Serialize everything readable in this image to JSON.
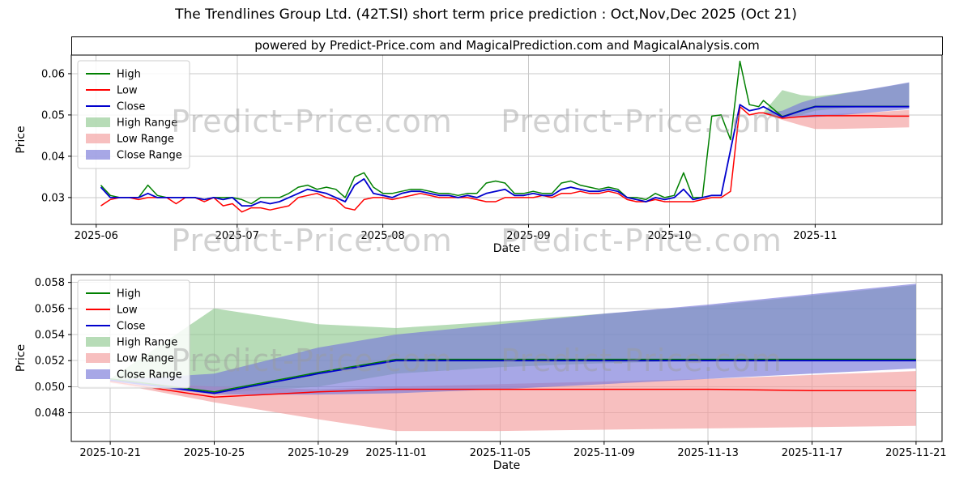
{
  "title": "The Trendlines Group Ltd. (42T.SI) short term price prediction : Oct,Nov,Dec 2025 (Oct 21)",
  "subtitle": "powered by Predict-Price.com and MagicalPrediction.com and MagicalAnalysis.com",
  "watermark_text": "Predict-Price.com",
  "colors": {
    "high": "#008000",
    "low": "#ff0000",
    "close": "#0000cd",
    "high_range": "#90c990",
    "low_range": "#f29c9c",
    "close_range": "#7878d8",
    "grid": "#c8c8c8",
    "frame": "#000000",
    "legend_border": "#cccccc"
  },
  "legend": {
    "items": [
      {
        "label": "High",
        "swatch": "line",
        "color": "high"
      },
      {
        "label": "Low",
        "swatch": "line",
        "color": "low"
      },
      {
        "label": "Close",
        "swatch": "line",
        "color": "close"
      },
      {
        "label": "High Range",
        "swatch": "patch",
        "color": "high_range"
      },
      {
        "label": "Low Range",
        "swatch": "patch",
        "color": "low_range"
      },
      {
        "label": "Close Range",
        "swatch": "patch",
        "color": "close_range"
      }
    ]
  },
  "chart_data": [
    {
      "type": "line",
      "name": "price-history",
      "xlabel": "Date",
      "ylabel": "Price",
      "x_unit": "days since 2025-06-01",
      "xlim": [
        -5.3,
        180
      ],
      "ylim": [
        0.0235,
        0.0645
      ],
      "grid": true,
      "legend_position": "upper-left",
      "x_ticks": [
        {
          "x": 0,
          "label": "2025-06"
        },
        {
          "x": 30,
          "label": "2025-07"
        },
        {
          "x": 61,
          "label": "2025-08"
        },
        {
          "x": 92,
          "label": "2025-09"
        },
        {
          "x": 122,
          "label": "2025-10"
        },
        {
          "x": 153,
          "label": "2025-11"
        }
      ],
      "y_ticks": [
        {
          "y": 0.03,
          "label": "0.03"
        },
        {
          "y": 0.04,
          "label": "0.04"
        },
        {
          "y": 0.05,
          "label": "0.05"
        },
        {
          "y": 0.06,
          "label": "0.06"
        }
      ],
      "series": [
        {
          "name": "High",
          "color": "high",
          "x": [
            1,
            3,
            5,
            7,
            9,
            11,
            13,
            15,
            17,
            19,
            21,
            23,
            25,
            27,
            29,
            31,
            33,
            35,
            37,
            39,
            41,
            43,
            45,
            47,
            49,
            51,
            53,
            55,
            57,
            59,
            61,
            63,
            65,
            67,
            69,
            71,
            73,
            75,
            77,
            79,
            81,
            83,
            85,
            87,
            89,
            91,
            93,
            95,
            97,
            99,
            101,
            103,
            105,
            107,
            109,
            111,
            113,
            115,
            117,
            119,
            121,
            123,
            125,
            127,
            129,
            131,
            133,
            135,
            137,
            139,
            141,
            142,
            146,
            150,
            153,
            157,
            161,
            165,
            169,
            173
          ],
          "values": [
            0.033,
            0.0305,
            0.03,
            0.03,
            0.03,
            0.033,
            0.0305,
            0.03,
            0.03,
            0.03,
            0.03,
            0.0295,
            0.03,
            0.03,
            0.03,
            0.0295,
            0.0285,
            0.03,
            0.03,
            0.03,
            0.031,
            0.0325,
            0.033,
            0.032,
            0.0325,
            0.032,
            0.03,
            0.035,
            0.036,
            0.0325,
            0.031,
            0.031,
            0.0315,
            0.032,
            0.032,
            0.0315,
            0.031,
            0.031,
            0.0305,
            0.031,
            0.031,
            0.0335,
            0.034,
            0.0335,
            0.031,
            0.031,
            0.0315,
            0.031,
            0.031,
            0.0335,
            0.034,
            0.033,
            0.0325,
            0.032,
            0.0325,
            0.032,
            0.03,
            0.03,
            0.0295,
            0.031,
            0.03,
            0.0305,
            0.036,
            0.03,
            0.03,
            0.0497,
            0.05,
            0.044,
            0.063,
            0.0525,
            0.052,
            0.0535,
            0.0496,
            0.0511,
            0.0521,
            0.0521,
            0.0521,
            0.0521,
            0.0521,
            0.0521
          ]
        },
        {
          "name": "Low",
          "color": "low",
          "x": [
            1,
            3,
            5,
            7,
            9,
            11,
            13,
            15,
            17,
            19,
            21,
            23,
            25,
            27,
            29,
            31,
            33,
            35,
            37,
            39,
            41,
            43,
            45,
            47,
            49,
            51,
            53,
            55,
            57,
            59,
            61,
            63,
            65,
            67,
            69,
            71,
            73,
            75,
            77,
            79,
            81,
            83,
            85,
            87,
            89,
            91,
            93,
            95,
            97,
            99,
            101,
            103,
            105,
            107,
            109,
            111,
            113,
            115,
            117,
            119,
            121,
            123,
            125,
            127,
            129,
            131,
            133,
            135,
            137,
            139,
            141,
            142,
            146,
            150,
            153,
            157,
            161,
            165,
            169,
            173
          ],
          "values": [
            0.028,
            0.0295,
            0.03,
            0.03,
            0.0295,
            0.03,
            0.03,
            0.03,
            0.0285,
            0.03,
            0.03,
            0.029,
            0.03,
            0.028,
            0.0285,
            0.0265,
            0.0275,
            0.0275,
            0.027,
            0.0275,
            0.028,
            0.03,
            0.0305,
            0.031,
            0.03,
            0.0295,
            0.0275,
            0.027,
            0.0295,
            0.03,
            0.03,
            0.0295,
            0.03,
            0.0305,
            0.031,
            0.0305,
            0.03,
            0.03,
            0.03,
            0.03,
            0.0295,
            0.029,
            0.029,
            0.03,
            0.03,
            0.03,
            0.03,
            0.0305,
            0.03,
            0.031,
            0.031,
            0.0315,
            0.031,
            0.031,
            0.0315,
            0.031,
            0.0295,
            0.029,
            0.029,
            0.0295,
            0.029,
            0.029,
            0.029,
            0.029,
            0.0295,
            0.03,
            0.03,
            0.0315,
            0.052,
            0.05,
            0.0505,
            0.0505,
            0.0492,
            0.0496,
            0.0498,
            0.0498,
            0.0498,
            0.0498,
            0.0497,
            0.0497
          ]
        },
        {
          "name": "Close",
          "color": "close",
          "x": [
            1,
            3,
            5,
            7,
            9,
            11,
            13,
            15,
            17,
            19,
            21,
            23,
            25,
            27,
            29,
            31,
            33,
            35,
            37,
            39,
            41,
            43,
            45,
            47,
            49,
            51,
            53,
            55,
            57,
            59,
            61,
            63,
            65,
            67,
            69,
            71,
            73,
            75,
            77,
            79,
            81,
            83,
            85,
            87,
            89,
            91,
            93,
            95,
            97,
            99,
            101,
            103,
            105,
            107,
            109,
            111,
            113,
            115,
            117,
            119,
            121,
            123,
            125,
            127,
            129,
            131,
            133,
            135,
            137,
            139,
            141,
            142,
            146,
            150,
            153,
            157,
            161,
            165,
            169,
            173
          ],
          "values": [
            0.0325,
            0.03,
            0.03,
            0.03,
            0.03,
            0.031,
            0.03,
            0.03,
            0.03,
            0.03,
            0.03,
            0.0295,
            0.03,
            0.0295,
            0.03,
            0.028,
            0.028,
            0.029,
            0.0285,
            0.029,
            0.03,
            0.031,
            0.032,
            0.0315,
            0.031,
            0.03,
            0.029,
            0.033,
            0.0345,
            0.031,
            0.0305,
            0.03,
            0.031,
            0.0315,
            0.0315,
            0.031,
            0.0305,
            0.0305,
            0.03,
            0.0305,
            0.03,
            0.031,
            0.0315,
            0.032,
            0.0305,
            0.0305,
            0.031,
            0.0305,
            0.0305,
            0.032,
            0.0325,
            0.032,
            0.0315,
            0.0315,
            0.032,
            0.0315,
            0.03,
            0.0295,
            0.029,
            0.03,
            0.0295,
            0.03,
            0.032,
            0.0295,
            0.03,
            0.0305,
            0.0305,
            0.0415,
            0.0525,
            0.051,
            0.0515,
            0.052,
            0.0495,
            0.051,
            0.052,
            0.052,
            0.052,
            0.052,
            0.052,
            0.052
          ]
        }
      ],
      "bands": [
        {
          "name": "High Range",
          "color": "high_range",
          "x": [
            142,
            146,
            150,
            153,
            157,
            161,
            165,
            169,
            173
          ],
          "upper": [
            0.0506,
            0.056,
            0.0548,
            0.0545,
            0.055,
            0.0556,
            0.0562,
            0.057,
            0.0578
          ],
          "lower": [
            0.0504,
            0.0495,
            0.05,
            0.051,
            0.0515,
            0.0518,
            0.052,
            0.052,
            0.052
          ]
        },
        {
          "name": "Low Range",
          "color": "low_range",
          "x": [
            142,
            146,
            150,
            153,
            157,
            161,
            165,
            169,
            173
          ],
          "upper": [
            0.0504,
            0.05,
            0.0498,
            0.05,
            0.0502,
            0.0504,
            0.0506,
            0.0509,
            0.0512
          ],
          "lower": [
            0.0503,
            0.0488,
            0.0475,
            0.0466,
            0.0466,
            0.0467,
            0.0468,
            0.0469,
            0.047
          ]
        },
        {
          "name": "Close Range",
          "color": "close_range",
          "x": [
            142,
            146,
            150,
            153,
            157,
            161,
            165,
            169,
            173
          ],
          "upper": [
            0.0505,
            0.051,
            0.053,
            0.054,
            0.0548,
            0.0556,
            0.0563,
            0.0571,
            0.0579
          ],
          "lower": [
            0.0504,
            0.0494,
            0.0494,
            0.0495,
            0.0498,
            0.0502,
            0.0506,
            0.051,
            0.0514
          ]
        }
      ]
    },
    {
      "type": "line",
      "name": "price-forecast",
      "xlabel": "Date",
      "ylabel": "Price",
      "x_unit": "days since 2025-10-21",
      "xlim": [
        -1.5,
        32
      ],
      "ylim": [
        0.0458,
        0.0586
      ],
      "grid": true,
      "legend_position": "upper-left",
      "x_ticks": [
        {
          "x": 0,
          "label": "2025-10-21"
        },
        {
          "x": 4,
          "label": "2025-10-25"
        },
        {
          "x": 8,
          "label": "2025-10-29"
        },
        {
          "x": 11,
          "label": "2025-11-01"
        },
        {
          "x": 15,
          "label": "2025-11-05"
        },
        {
          "x": 19,
          "label": "2025-11-09"
        },
        {
          "x": 23,
          "label": "2025-11-13"
        },
        {
          "x": 27,
          "label": "2025-11-17"
        },
        {
          "x": 31,
          "label": "2025-11-21"
        }
      ],
      "y_ticks": [
        {
          "y": 0.048,
          "label": "0.048"
        },
        {
          "y": 0.05,
          "label": "0.050"
        },
        {
          "y": 0.052,
          "label": "0.052"
        },
        {
          "y": 0.054,
          "label": "0.054"
        },
        {
          "y": 0.056,
          "label": "0.056"
        },
        {
          "y": 0.058,
          "label": "0.058"
        }
      ],
      "series": [
        {
          "name": "High",
          "color": "high",
          "x": [
            0,
            4,
            8,
            11,
            15,
            19,
            23,
            27,
            31
          ],
          "values": [
            0.0506,
            0.0496,
            0.0511,
            0.0521,
            0.0521,
            0.0521,
            0.0521,
            0.0521,
            0.0521
          ]
        },
        {
          "name": "Low",
          "color": "low",
          "x": [
            0,
            4,
            8,
            11,
            15,
            19,
            23,
            27,
            31
          ],
          "values": [
            0.0504,
            0.0492,
            0.0496,
            0.0498,
            0.0498,
            0.0498,
            0.0498,
            0.0497,
            0.0497
          ]
        },
        {
          "name": "Close",
          "color": "close",
          "x": [
            0,
            4,
            8,
            11,
            15,
            19,
            23,
            27,
            31
          ],
          "values": [
            0.0505,
            0.0495,
            0.051,
            0.052,
            0.052,
            0.052,
            0.052,
            0.052,
            0.052
          ]
        }
      ],
      "bands": [
        {
          "name": "High Range",
          "color": "high_range",
          "x": [
            0,
            4,
            8,
            11,
            15,
            19,
            23,
            27,
            31
          ],
          "upper": [
            0.0506,
            0.056,
            0.0548,
            0.0545,
            0.055,
            0.0556,
            0.0562,
            0.057,
            0.0578
          ],
          "lower": [
            0.0504,
            0.0495,
            0.05,
            0.051,
            0.0515,
            0.0518,
            0.052,
            0.052,
            0.052
          ]
        },
        {
          "name": "Low Range",
          "color": "low_range",
          "x": [
            0,
            4,
            8,
            11,
            15,
            19,
            23,
            27,
            31
          ],
          "upper": [
            0.0504,
            0.05,
            0.0498,
            0.05,
            0.0502,
            0.0504,
            0.0506,
            0.0509,
            0.0512
          ],
          "lower": [
            0.0503,
            0.0488,
            0.0475,
            0.0466,
            0.0466,
            0.0467,
            0.0468,
            0.0469,
            0.047
          ]
        },
        {
          "name": "Close Range",
          "color": "close_range",
          "x": [
            0,
            4,
            8,
            11,
            15,
            19,
            23,
            27,
            31
          ],
          "upper": [
            0.0505,
            0.051,
            0.053,
            0.054,
            0.0548,
            0.0556,
            0.0563,
            0.0571,
            0.0579
          ],
          "lower": [
            0.0504,
            0.0494,
            0.0494,
            0.0495,
            0.0498,
            0.0502,
            0.0506,
            0.051,
            0.0514
          ]
        }
      ]
    }
  ]
}
